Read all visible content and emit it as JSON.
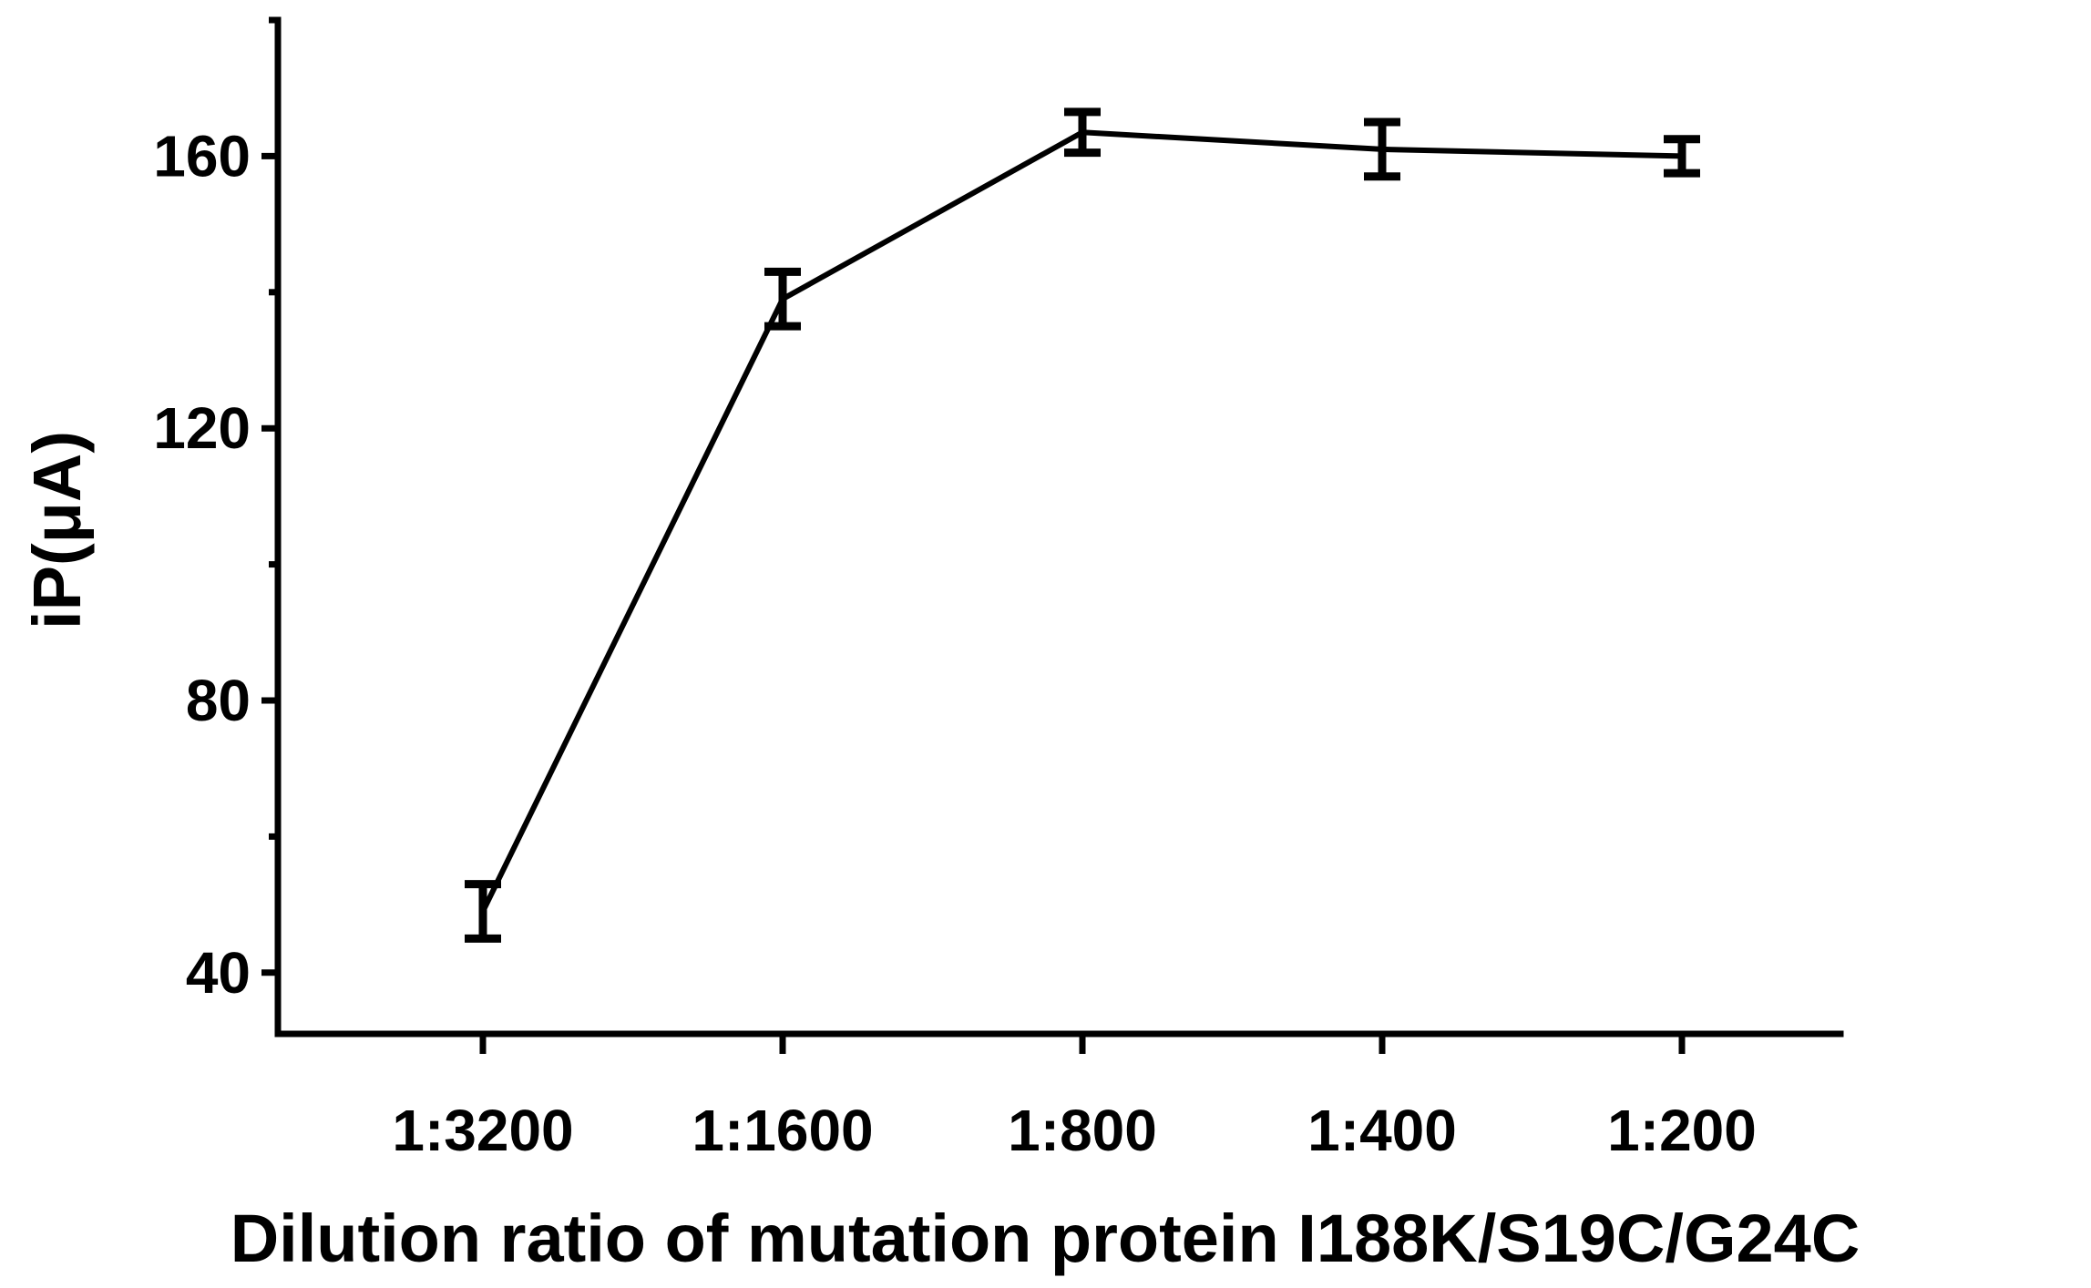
{
  "chart_data": {
    "type": "line",
    "categories": [
      "1:3200",
      "1:1600",
      "1:800",
      "1:400",
      "1:200"
    ],
    "series": [
      {
        "values": [
          49,
          139,
          163.5,
          161,
          160
        ],
        "errors": [
          4,
          4,
          3,
          4,
          2.5
        ],
        "color": "#000000"
      }
    ],
    "xlabel": "Dilution ratio of  mutation protein I188K/S19C/G24C",
    "ylabel": "iP(μA)",
    "ylim": [
      31,
      180
    ],
    "yticks_major": [
      40,
      80,
      120,
      160
    ],
    "yticks_minor": [
      60,
      100,
      140,
      180
    ],
    "grid": false,
    "legend": "none"
  }
}
